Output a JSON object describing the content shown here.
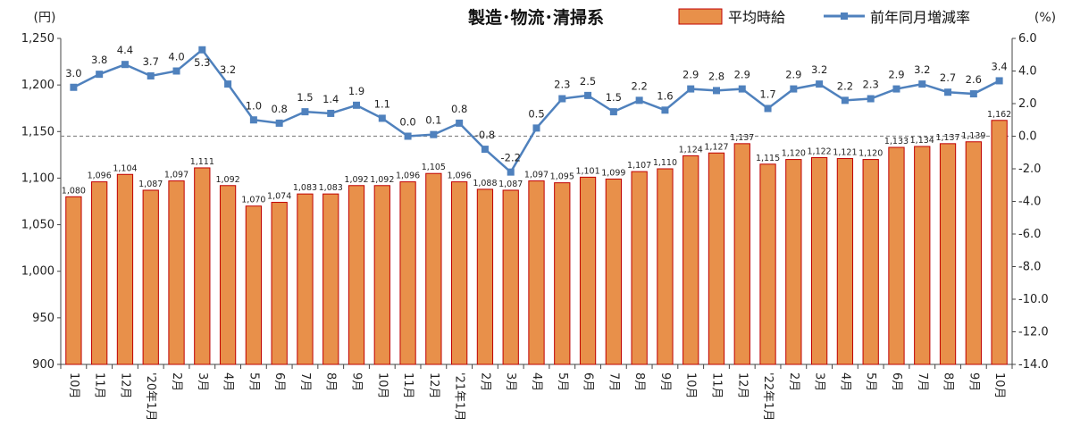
{
  "chart_data": {
    "type": "bar",
    "title": "製造･物流･清掃系",
    "left_unit": "(円)",
    "right_unit": "(%)",
    "categories": [
      "10月",
      "11月",
      "12月",
      "'20年1月",
      "2月",
      "3月",
      "4月",
      "5月",
      "6月",
      "7月",
      "8月",
      "9月",
      "10月",
      "11月",
      "12月",
      "'21年1月",
      "2月",
      "3月",
      "4月",
      "5月",
      "6月",
      "7月",
      "8月",
      "9月",
      "10月",
      "11月",
      "12月",
      "'22年1月",
      "2月",
      "3月",
      "4月",
      "5月",
      "6月",
      "7月",
      "8月",
      "9月",
      "10月"
    ],
    "series": [
      {
        "name": "平均時給",
        "type": "bar",
        "axis": "left",
        "color": "#E8904A",
        "values": [
          1080,
          1096,
          1104,
          1087,
          1097,
          1111,
          1092,
          1070,
          1074,
          1083,
          1083,
          1092,
          1092,
          1096,
          1105,
          1096,
          1088,
          1087,
          1097,
          1095,
          1101,
          1099,
          1107,
          1110,
          1124,
          1127,
          1137,
          1115,
          1120,
          1122,
          1121,
          1120,
          1133,
          1134,
          1137,
          1139,
          1162
        ],
        "labels": [
          "1,080",
          "1,096",
          "1,104",
          "1,087",
          "1,097",
          "1,111",
          "1,092",
          "1,070",
          "1,074",
          "1,083",
          "1,083",
          "1,092",
          "1,092",
          "1,096",
          "1,105",
          "1,096",
          "1,088",
          "1,087",
          "1,097",
          "1,095",
          "1,101",
          "1,099",
          "1,107",
          "1,110",
          "1,124",
          "1,127",
          "1,137",
          "1,115",
          "1,120",
          "1,122",
          "1,121",
          "1,120",
          "1,133",
          "1,134",
          "1,137",
          "1,139",
          "1,162"
        ]
      },
      {
        "name": "前年同月増減率",
        "type": "line",
        "axis": "right",
        "color": "#4F81BD",
        "values": [
          3.0,
          3.8,
          4.4,
          3.7,
          4.0,
          5.3,
          3.2,
          1.0,
          0.8,
          1.5,
          1.4,
          1.9,
          1.1,
          0.0,
          0.1,
          0.8,
          -0.8,
          -2.2,
          0.5,
          2.3,
          2.5,
          1.5,
          2.2,
          1.6,
          2.9,
          2.8,
          2.9,
          1.7,
          2.9,
          3.2,
          2.2,
          2.3,
          2.9,
          3.2,
          2.7,
          2.6,
          3.4
        ],
        "labels": [
          "3.0",
          "3.8",
          "4.4",
          "3.7",
          "4.0",
          "5.3",
          "3.2",
          "1.0",
          "0.8",
          "1.5",
          "1.4",
          "1.9",
          "1.1",
          "0.0",
          "0.1",
          "0.8",
          "-0.8",
          "-2.2",
          "0.5",
          "2.3",
          "2.5",
          "1.5",
          "2.2",
          "1.6",
          "2.9",
          "2.8",
          "2.9",
          "1.7",
          "2.9",
          "3.2",
          "2.2",
          "2.3",
          "2.9",
          "3.2",
          "2.7",
          "2.6",
          "3.4"
        ]
      }
    ],
    "left_axis": {
      "min": 900,
      "max": 1250,
      "ticks": [
        900,
        950,
        1000,
        1050,
        1100,
        1150,
        1200,
        1250
      ],
      "tick_labels": [
        "900",
        "950",
        "1,000",
        "1,050",
        "1,100",
        "1,150",
        "1,200",
        "1,250"
      ]
    },
    "right_axis": {
      "min": -14,
      "max": 6,
      "ticks": [
        -14,
        -12,
        -10,
        -8,
        -6,
        -4,
        -2,
        0,
        2,
        4,
        6
      ],
      "tick_labels": [
        "-14.0",
        "-12.0",
        "-10.0",
        "-8.0",
        "-6.0",
        "-4.0",
        "-2.0",
        "0.0",
        "2.0",
        "4.0",
        "6.0"
      ]
    },
    "zero_reference_line": "dashed",
    "grid": false,
    "legend": "top-right"
  }
}
